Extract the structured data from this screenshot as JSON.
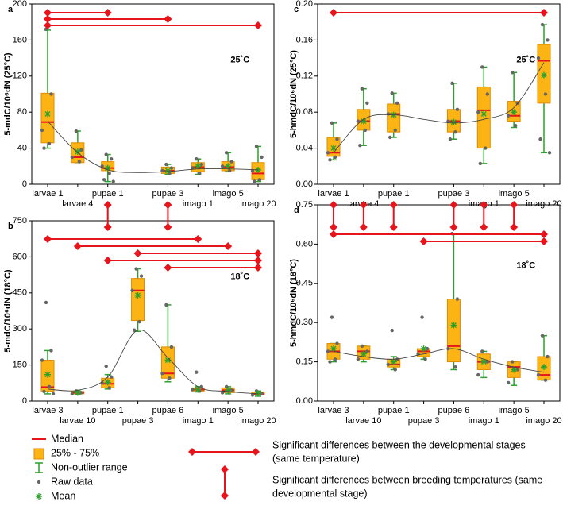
{
  "chart_data": [
    {
      "type": "box",
      "panel": "a",
      "ylabel": "5-mdC/10⁶dN (25°C)",
      "label": "25˚C",
      "categories": [
        "larvae 1",
        "larvae 4",
        "pupae 1",
        null,
        "pupae 3",
        "imago 1",
        "imago 5",
        "imago 20"
      ],
      "ylim": [
        0,
        200
      ],
      "yticks": [
        0,
        40,
        80,
        120,
        160,
        200
      ],
      "boxes": [
        {
          "median": 69,
          "q1": 46,
          "q3": 101,
          "low": 40,
          "high": 171,
          "mean": 78,
          "raw": [
            172,
            100,
            60,
            45,
            40
          ]
        },
        {
          "median": 30,
          "q1": 24,
          "q3": 46,
          "low": 24,
          "high": 59,
          "mean": 36,
          "raw": [
            59,
            38,
            30,
            25
          ]
        },
        {
          "median": 18,
          "q1": 15,
          "q3": 25,
          "low": 3,
          "high": 33,
          "mean": 18,
          "raw": [
            33,
            28,
            20,
            12,
            5,
            3
          ]
        },
        null,
        {
          "median": 15,
          "q1": 12,
          "q3": 19,
          "low": 11,
          "high": 22,
          "mean": 15,
          "raw": [
            22,
            18,
            15,
            12
          ]
        },
        {
          "median": 19,
          "q1": 14,
          "q3": 24,
          "low": 11,
          "high": 28,
          "mean": 20,
          "raw": [
            28,
            22,
            18,
            12
          ]
        },
        {
          "median": 19,
          "q1": 15,
          "q3": 25,
          "low": 14,
          "high": 35,
          "mean": 20,
          "raw": [
            35,
            25,
            20,
            15
          ]
        },
        {
          "median": 12,
          "q1": 5,
          "q3": 24,
          "low": 3,
          "high": 42,
          "mean": 16,
          "raw": [
            42,
            30,
            15,
            5,
            3
          ]
        }
      ],
      "trend": [
        70,
        35,
        16,
        13,
        14,
        17,
        17,
        16
      ],
      "significance": [
        [
          0,
          2
        ],
        [
          0,
          4
        ],
        [
          0,
          7
        ]
      ]
    },
    {
      "type": "box",
      "panel": "b",
      "ylabel": "5-mdC/10⁶dN (18°C)",
      "label": "18˚C",
      "categories": [
        "larvae 3",
        "larvae 10",
        "pupae 1",
        "pupae 3",
        "pupae 6",
        "imago 1",
        "imago 5",
        "imago 20"
      ],
      "ylim": [
        0,
        750
      ],
      "yticks": [
        0,
        150,
        300,
        450,
        600,
        750
      ],
      "boxes": [
        {
          "median": 58,
          "q1": 40,
          "q3": 170,
          "low": 30,
          "high": 210,
          "mean": 110,
          "raw": [
            410,
            210,
            170,
            60,
            40,
            30
          ]
        },
        {
          "median": 35,
          "q1": 30,
          "q3": 40,
          "low": 28,
          "high": 42,
          "mean": 35,
          "raw": [
            42,
            35,
            30
          ]
        },
        {
          "median": 72,
          "q1": 55,
          "q3": 95,
          "low": 50,
          "high": 110,
          "mean": 78,
          "raw": [
            145,
            100,
            75,
            55
          ]
        },
        {
          "median": 460,
          "q1": 335,
          "q3": 510,
          "low": 290,
          "high": 550,
          "mean": 440,
          "raw": [
            550,
            520,
            460,
            330,
            295
          ]
        },
        {
          "median": 115,
          "q1": 95,
          "q3": 225,
          "low": 80,
          "high": 400,
          "mean": 170,
          "raw": [
            400,
            225,
            115,
            95
          ]
        },
        {
          "median": 48,
          "q1": 42,
          "q3": 55,
          "low": 38,
          "high": 60,
          "mean": 48,
          "raw": [
            120,
            60,
            48,
            42
          ]
        },
        {
          "median": 45,
          "q1": 35,
          "q3": 55,
          "low": 30,
          "high": 60,
          "mean": 44,
          "raw": [
            60,
            45,
            35
          ]
        },
        {
          "median": 30,
          "q1": 25,
          "q3": 38,
          "low": 20,
          "high": 42,
          "mean": 32,
          "raw": [
            42,
            32,
            25
          ]
        }
      ],
      "trend": [
        50,
        45,
        100,
        295,
        180,
        60,
        40,
        30
      ],
      "significance": [
        [
          0,
          5
        ],
        [
          1,
          6
        ],
        [
          3,
          7
        ],
        [
          2,
          7
        ],
        [
          4,
          7
        ]
      ],
      "temperature_arrows": [
        2,
        4
      ]
    },
    {
      "type": "box",
      "panel": "c",
      "ylabel": "5-hmdC/10⁶dN (25°C)",
      "label": "25˚C",
      "categories": [
        "larvae 1",
        "larvae 4",
        "pupae 1",
        null,
        "pupae 3",
        "imago 1",
        "imago 5",
        "imago 20"
      ],
      "ylim": [
        0,
        0.2
      ],
      "yticks": [
        {
          "value": 0,
          "label": "0.00"
        },
        {
          "value": 0.04,
          "label": "0.04"
        },
        {
          "value": 0.08,
          "label": "0.08"
        },
        {
          "value": 0.12,
          "label": "0.12"
        },
        {
          "value": 0.16,
          "label": "0.16"
        },
        {
          "value": 0.2,
          "label": "0.20"
        }
      ],
      "boxes": [
        {
          "median": 0.035,
          "q1": 0.031,
          "q3": 0.052,
          "low": 0.027,
          "high": 0.068,
          "mean": 0.04,
          "raw": [
            0.068,
            0.05,
            0.035,
            0.03,
            0.027
          ]
        },
        {
          "median": 0.07,
          "q1": 0.06,
          "q3": 0.083,
          "low": 0.043,
          "high": 0.106,
          "mean": 0.07,
          "raw": [
            0.106,
            0.09,
            0.07,
            0.06,
            0.043
          ]
        },
        {
          "median": 0.078,
          "q1": 0.058,
          "q3": 0.089,
          "low": 0.052,
          "high": 0.101,
          "mean": 0.077,
          "raw": [
            0.101,
            0.09,
            0.078,
            0.06,
            0.052
          ]
        },
        null,
        {
          "median": 0.07,
          "q1": 0.058,
          "q3": 0.083,
          "low": 0.05,
          "high": 0.112,
          "mean": 0.069,
          "raw": [
            0.112,
            0.083,
            0.07,
            0.058,
            0.05
          ]
        },
        {
          "median": 0.082,
          "q1": 0.04,
          "q3": 0.108,
          "low": 0.023,
          "high": 0.13,
          "mean": 0.078,
          "raw": [
            0.13,
            0.1,
            0.08,
            0.04,
            0.023
          ]
        },
        {
          "median": 0.076,
          "q1": 0.07,
          "q3": 0.092,
          "low": 0.063,
          "high": 0.124,
          "mean": 0.08,
          "raw": [
            0.124,
            0.09,
            0.076,
            0.065
          ]
        },
        {
          "median": 0.137,
          "q1": 0.09,
          "q3": 0.155,
          "low": 0.035,
          "high": 0.177,
          "mean": 0.121,
          "raw": [
            0.177,
            0.16,
            0.14,
            0.1,
            0.05,
            0.035
          ]
        }
      ],
      "trend": [
        0.035,
        0.072,
        0.077,
        0.072,
        0.068,
        0.072,
        0.085,
        0.135
      ],
      "significance": [
        [
          0,
          7
        ]
      ]
    },
    {
      "type": "box",
      "panel": "d",
      "ylabel": "5-hmdC/10⁶dN (18°C)",
      "label": "18˚C",
      "categories": [
        "larvae 3",
        "larvae 10",
        "pupae 1",
        "pupae 3",
        "pupae 6",
        "imago 1",
        "imago 5",
        "imago 20"
      ],
      "ylim": [
        0,
        0.75
      ],
      "yticks": [
        {
          "value": 0,
          "label": "0.00"
        },
        {
          "value": 0.15,
          "label": "0.15"
        },
        {
          "value": 0.3,
          "label": "0.30"
        },
        {
          "value": 0.45,
          "label": "0.45"
        },
        {
          "value": 0.6,
          "label": "0.60"
        },
        {
          "value": 0.75,
          "label": "0.75"
        }
      ],
      "boxes": [
        {
          "median": 0.19,
          "q1": 0.16,
          "q3": 0.22,
          "low": 0.15,
          "high": 0.22,
          "mean": 0.2,
          "raw": [
            0.32,
            0.22,
            0.19,
            0.16,
            0.15
          ]
        },
        {
          "median": 0.19,
          "q1": 0.16,
          "q3": 0.21,
          "low": 0.15,
          "high": 0.21,
          "mean": 0.18,
          "raw": [
            0.21,
            0.19,
            0.16
          ]
        },
        {
          "median": 0.14,
          "q1": 0.13,
          "q3": 0.16,
          "low": 0.12,
          "high": 0.17,
          "mean": 0.15,
          "raw": [
            0.27,
            0.16,
            0.14,
            0.12
          ]
        },
        {
          "median": 0.19,
          "q1": 0.17,
          "q3": 0.2,
          "low": 0.16,
          "high": 0.2,
          "mean": 0.2,
          "raw": [
            0.32,
            0.2,
            0.18,
            0.16
          ]
        },
        {
          "median": 0.21,
          "q1": 0.15,
          "q3": 0.39,
          "low": 0.12,
          "high": 0.64,
          "mean": 0.29,
          "raw": [
            0.64,
            0.39,
            0.2,
            0.13
          ]
        },
        {
          "median": 0.15,
          "q1": 0.12,
          "q3": 0.18,
          "low": 0.09,
          "high": 0.19,
          "mean": 0.15,
          "raw": [
            0.19,
            0.15,
            0.1
          ]
        },
        {
          "median": 0.13,
          "q1": 0.09,
          "q3": 0.15,
          "low": 0.06,
          "high": 0.15,
          "mean": 0.12,
          "raw": [
            0.15,
            0.12,
            0.07
          ]
        },
        {
          "median": 0.1,
          "q1": 0.08,
          "q3": 0.17,
          "low": 0.08,
          "high": 0.25,
          "mean": 0.13,
          "raw": [
            0.25,
            0.17,
            0.1,
            0.08
          ]
        }
      ],
      "trend": [
        0.19,
        0.17,
        0.16,
        0.18,
        0.2,
        0.16,
        0.13,
        0.11
      ],
      "significance": [
        [
          0,
          7
        ],
        [
          3,
          7
        ]
      ],
      "temperature_arrows": [
        0,
        1,
        2,
        4,
        5,
        6
      ]
    }
  ],
  "legend": {
    "items": [
      "Median",
      "25% - 75%",
      "Non-outlier range",
      "Raw data",
      "Mean"
    ],
    "stage_text": [
      "Significant differences between the developmental stages",
      "(same temperature)"
    ],
    "temp_text": [
      "Significant differences between breeding temperatures (same",
      "developmental stage)"
    ]
  }
}
